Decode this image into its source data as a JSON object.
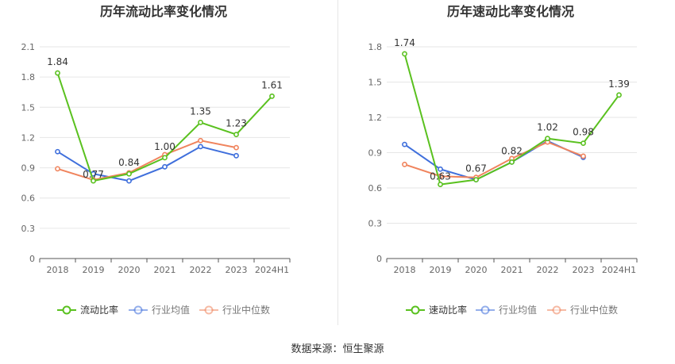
{
  "source_text": "数据来源：恒生聚源",
  "colors": {
    "primary": "#5ac11f",
    "industry_avg": "#3f6fdc",
    "industry_median": "#f0845d",
    "grid": "#e6e6e6",
    "axis": "#555555"
  },
  "chart_data": [
    {
      "type": "line",
      "title": "历年流动比率变化情况",
      "categories": [
        "2018",
        "2019",
        "2020",
        "2021",
        "2022",
        "2023",
        "2024H1"
      ],
      "ylim": [
        0,
        2.1
      ],
      "yticks": [
        "0",
        "0.3",
        "0.6",
        "0.9",
        "1.2",
        "1.5",
        "1.8",
        "2.1"
      ],
      "grid": true,
      "legend_position": "bottom",
      "series": [
        {
          "name": "流动比率",
          "color": "#5ac11f",
          "values": [
            1.84,
            0.77,
            0.84,
            1.0,
            1.35,
            1.23,
            1.61
          ],
          "labels": [
            "1.84",
            "0.77",
            "0.84",
            "1.00",
            "1.35",
            "1.23",
            "1.61"
          ]
        },
        {
          "name": "行业均值",
          "color": "#3f6fdc",
          "values": [
            1.06,
            0.84,
            0.77,
            0.91,
            1.11,
            1.02,
            null
          ]
        },
        {
          "name": "行业中位数",
          "color": "#f0845d",
          "values": [
            0.89,
            0.78,
            0.85,
            1.03,
            1.17,
            1.1,
            null
          ]
        }
      ]
    },
    {
      "type": "line",
      "title": "历年速动比率变化情况",
      "categories": [
        "2018",
        "2019",
        "2020",
        "2021",
        "2022",
        "2023",
        "2024H1"
      ],
      "ylim": [
        0,
        1.8
      ],
      "yticks": [
        "0",
        "0.3",
        "0.6",
        "0.9",
        "1.2",
        "1.5",
        "1.8"
      ],
      "grid": true,
      "legend_position": "bottom",
      "series": [
        {
          "name": "速动比率",
          "color": "#5ac11f",
          "values": [
            1.74,
            0.63,
            0.67,
            0.82,
            1.02,
            0.98,
            1.39
          ],
          "labels": [
            "1.74",
            "0.63",
            "0.67",
            "0.82",
            "1.02",
            "0.98",
            "1.39"
          ]
        },
        {
          "name": "行业均值",
          "color": "#3f6fdc",
          "values": [
            0.97,
            0.76,
            0.67,
            0.82,
            1.0,
            0.86,
            null
          ]
        },
        {
          "name": "行业中位数",
          "color": "#f0845d",
          "values": [
            0.8,
            0.7,
            0.69,
            0.85,
            0.99,
            0.87,
            null
          ]
        }
      ]
    }
  ]
}
